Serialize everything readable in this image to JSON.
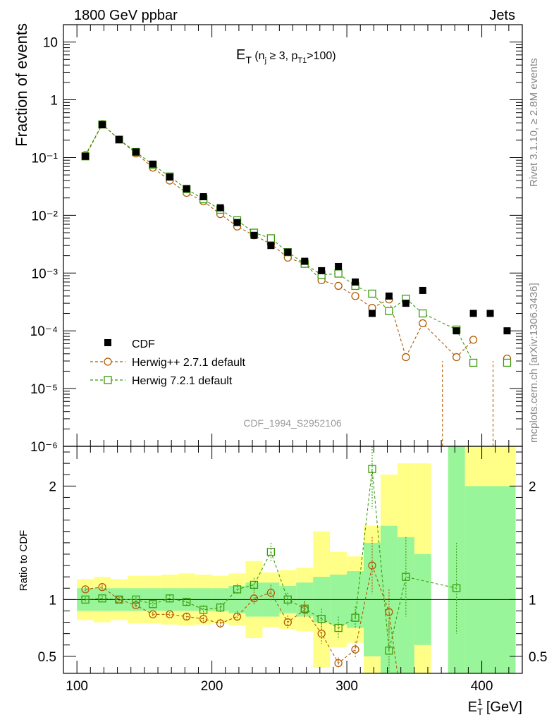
{
  "header": {
    "left": "1800 GeV ppbar",
    "right": "Jets"
  },
  "side": {
    "rivet": "Rivet 3.1.10, ≥ 2.8M events",
    "mcplots": "mcplots.cern.ch [arXiv:1306.3436]"
  },
  "analysis_tag": "CDF_1994_S2952106",
  "title": {
    "main": "E",
    "main_sub": "T",
    "paren_open": " (n",
    "nj_sub": "j",
    "mid": " ≥ 3, p",
    "pt_sub": "T1",
    "tail": ">100)"
  },
  "colors": {
    "cdf": "#000000",
    "herwigpp": "#b35900",
    "herwig7": "#3a9b0e",
    "band_inner": "#99f599",
    "band_outer": "#ffff88"
  },
  "chart_data": [
    {
      "type": "scatter",
      "panel": "main",
      "ylabel": "Fraction of events",
      "yscale": "log",
      "ylim": [
        1e-06,
        20
      ],
      "xlim": [
        90,
        430
      ],
      "ytick_labels": [
        "10",
        "1",
        "10⁻¹",
        "10⁻²",
        "10⁻³",
        "10⁻⁴",
        "10⁻⁵",
        "10⁻⁶"
      ],
      "legend_position": "bottom-left",
      "x": [
        106.25,
        118.75,
        131.25,
        143.75,
        156.25,
        168.75,
        181.25,
        193.75,
        206.25,
        218.75,
        231.25,
        243.75,
        256.25,
        268.75,
        281.25,
        293.75,
        306.25,
        318.75,
        331.25,
        343.75,
        356.25,
        381.25,
        393.75,
        406.25,
        418.75
      ],
      "series": [
        {
          "name": "CDF",
          "values": [
            0.105,
            0.37,
            0.205,
            0.125,
            0.077,
            0.046,
            0.029,
            0.021,
            0.0135,
            0.0075,
            0.0045,
            0.003,
            0.0023,
            0.0016,
            0.0011,
            0.0013,
            0.0007,
            0.0002,
            0.0004,
            0.0003,
            0.0005,
            0.0001,
            0.0002,
            0.0002,
            0.0001
          ]
        },
        {
          "name": "Herwig++ 2.7.1 default",
          "values": [
            0.11,
            0.38,
            0.205,
            0.118,
            0.067,
            0.04,
            0.0245,
            0.0175,
            0.0105,
            0.0064,
            0.0045,
            0.0032,
            0.00185,
            0.00145,
            0.00075,
            0.0006,
            0.0004,
            0.00025,
            0.00035,
            3.5e-05,
            0.000135,
            3.5e-05,
            7e-05,
            null,
            3.3e-05
          ],
          "zero_bins": [
            368.75,
            406.25
          ]
        },
        {
          "name": "Herwig 7.2.1 default",
          "values": [
            0.105,
            0.375,
            0.205,
            0.125,
            0.075,
            0.047,
            0.0285,
            0.019,
            0.0125,
            0.0082,
            0.005,
            0.004,
            0.0023,
            0.00145,
            0.00093,
            0.00098,
            0.0006,
            0.00044,
            0.00022,
            0.00036,
            0.0002,
            0.000105,
            2.8e-05,
            null,
            2.8e-05
          ]
        }
      ]
    },
    {
      "type": "scatter",
      "panel": "ratio",
      "ylabel": "Ratio to CDF",
      "xlabel": "E",
      "xlabel_sub": "T",
      "xlabel_sup": "1",
      "xlabel_unit": " [GeV]",
      "ylim": [
        0.35,
        2.35
      ],
      "xlim": [
        90,
        430
      ],
      "yticks": [
        0.5,
        1,
        2
      ],
      "xticks": [
        100,
        200,
        300,
        400
      ],
      "band_edges": [
        100,
        112.5,
        125,
        137.5,
        150,
        162.5,
        175,
        187.5,
        200,
        212.5,
        225,
        237.5,
        250,
        262.5,
        275,
        287.5,
        300,
        312.5,
        325,
        337.5,
        350,
        362.5,
        375,
        387.5,
        400,
        412.5,
        425
      ],
      "band_inner": [
        [
          0.9,
          1.1
        ],
        [
          0.9,
          1.1
        ],
        [
          0.9,
          1.1
        ],
        [
          0.9,
          1.1
        ],
        [
          0.9,
          1.1
        ],
        [
          0.9,
          1.1
        ],
        [
          0.9,
          1.1
        ],
        [
          0.9,
          1.1
        ],
        [
          0.9,
          1.1
        ],
        [
          0.88,
          1.12
        ],
        [
          0.85,
          1.15
        ],
        [
          0.85,
          1.15
        ],
        [
          0.88,
          1.12
        ],
        [
          0.85,
          1.15
        ],
        [
          0.8,
          1.2
        ],
        [
          0.78,
          1.22
        ],
        [
          0.75,
          1.25
        ],
        [
          0.5,
          1.5
        ],
        [
          0.35,
          1.65
        ],
        [
          0.35,
          1.55
        ],
        [
          0.6,
          1.4
        ],
        null,
        [
          0.35,
          2.35
        ],
        [
          0.35,
          2.0
        ],
        [
          0.35,
          2.0
        ],
        [
          0.35,
          2.0
        ]
      ],
      "band_outer": [
        [
          0.82,
          1.18
        ],
        [
          0.8,
          1.2
        ],
        [
          0.82,
          1.18
        ],
        [
          0.79,
          1.21
        ],
        [
          0.79,
          1.21
        ],
        [
          0.78,
          1.22
        ],
        [
          0.77,
          1.23
        ],
        [
          0.78,
          1.22
        ],
        [
          0.79,
          1.21
        ],
        [
          0.77,
          1.23
        ],
        [
          0.66,
          1.34
        ],
        [
          0.76,
          1.24
        ],
        [
          0.74,
          1.26
        ],
        [
          0.72,
          1.28
        ],
        [
          0.4,
          1.6
        ],
        [
          0.58,
          1.42
        ],
        [
          0.62,
          1.38
        ],
        [
          0.35,
          1.65
        ],
        [
          0.35,
          2.1
        ],
        [
          0.35,
          2.2
        ],
        [
          0.35,
          2.2
        ],
        null,
        [
          0.35,
          2.35
        ],
        [
          0.35,
          2.35
        ],
        [
          0.35,
          2.35
        ],
        [
          0.35,
          2.35
        ]
      ],
      "x": [
        106.25,
        118.75,
        131.25,
        143.75,
        156.25,
        168.75,
        181.25,
        193.75,
        206.25,
        218.75,
        231.25,
        243.75,
        256.25,
        268.75,
        281.25,
        293.75,
        306.25,
        318.75,
        331.25,
        343.75,
        381.25
      ],
      "series": [
        {
          "name": "Herwig++ 2.7.1 default",
          "values": [
            1.09,
            1.11,
            1.0,
            0.95,
            0.87,
            0.87,
            0.85,
            0.83,
            0.79,
            0.85,
            1.01,
            1.06,
            0.8,
            0.91,
            0.7,
            0.44,
            0.56,
            1.3,
            0.89,
            null,
            null
          ],
          "errors": [
            0.02,
            0.02,
            0.02,
            0.02,
            0.02,
            0.02,
            0.03,
            0.04,
            0.04,
            0.05,
            0.06,
            0.07,
            0.06,
            0.07,
            0.09,
            0.05,
            0.07,
            0.25,
            0.2,
            null,
            null
          ]
        },
        {
          "name": "Herwig 7.2.1 default",
          "values": [
            1.0,
            1.01,
            1.0,
            1.0,
            0.96,
            1.01,
            0.98,
            0.91,
            0.93,
            1.09,
            1.13,
            1.42,
            1.0,
            0.92,
            0.83,
            0.75,
            0.84,
            2.15,
            0.55,
            1.2,
            1.1
          ],
          "errors": [
            0.02,
            0.02,
            0.02,
            0.02,
            0.02,
            0.03,
            0.03,
            0.04,
            0.04,
            0.05,
            0.06,
            0.08,
            0.06,
            0.07,
            0.09,
            0.1,
            0.1,
            0.35,
            0.25,
            0.35,
            0.4
          ]
        }
      ]
    }
  ]
}
